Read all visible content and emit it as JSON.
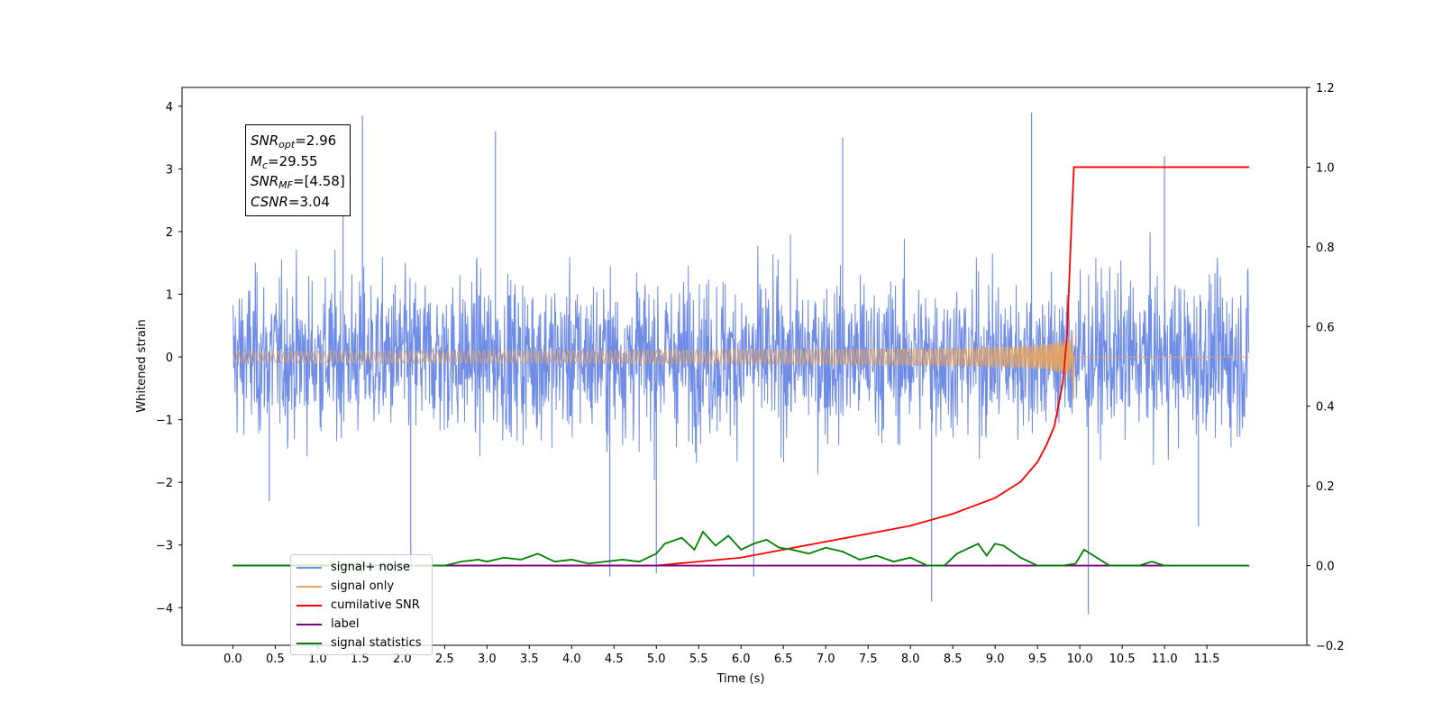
{
  "chart_data": {
    "type": "line",
    "xlabel": "Time (s)",
    "ylabel": "Whitened strain",
    "xlim": [
      -0.6,
      12.68
    ],
    "ylim": [
      -4.6,
      4.3
    ],
    "y2lim": [
      -0.2,
      1.2
    ],
    "x_ticks": [
      0.0,
      0.5,
      1.0,
      1.5,
      2.0,
      2.5,
      3.0,
      3.5,
      4.0,
      4.5,
      5.0,
      5.5,
      6.0,
      6.5,
      7.0,
      7.5,
      8.0,
      8.5,
      9.0,
      9.5,
      10.0,
      10.5,
      11.0,
      11.5
    ],
    "x_tick_labels": [
      "0.0",
      "0.5",
      "1.0",
      "1.5",
      "2.0",
      "2.5",
      "3.0",
      "3.5",
      "4.0",
      "4.5",
      "5.0",
      "5.5",
      "6.0",
      "6.5",
      "7.0",
      "7.5",
      "8.0",
      "8.5",
      "9.0",
      "9.5",
      "10.0",
      "10.5",
      "11.0",
      "11.5"
    ],
    "y_ticks": [
      -4,
      -3,
      -2,
      -1,
      0,
      1,
      2,
      3,
      4
    ],
    "y_tick_labels": [
      "−4",
      "−3",
      "−2",
      "−1",
      "0",
      "1",
      "2",
      "3",
      "4"
    ],
    "y2_ticks": [
      -0.2,
      0.0,
      0.2,
      0.4,
      0.6,
      0.8,
      1.0,
      1.2
    ],
    "y2_tick_labels": [
      "−0.2",
      "0.0",
      "0.2",
      "0.4",
      "0.6",
      "0.8",
      "1.0",
      "1.2"
    ],
    "grid": false,
    "legend_position": "lower-left",
    "series": [
      {
        "name": "signal+ noise",
        "axis": "left",
        "color": "#6f8ce6",
        "t_range": [
          0.0,
          12.0
        ],
        "envelope": 1.5,
        "peaks": [
          [
            1.53,
            3.85
          ],
          [
            9.43,
            3.9
          ],
          [
            1.3,
            3.2
          ],
          [
            3.1,
            3.6
          ],
          [
            7.2,
            3.5
          ],
          [
            2.1,
            -3.4
          ],
          [
            4.45,
            -3.5
          ],
          [
            5.0,
            -3.45
          ],
          [
            6.15,
            -3.5
          ],
          [
            8.25,
            -3.9
          ],
          [
            10.1,
            -4.1
          ],
          [
            0.43,
            -2.3
          ],
          [
            11.0,
            3.2
          ],
          [
            11.4,
            -2.7
          ]
        ]
      },
      {
        "name": "signal only",
        "axis": "left",
        "color": "#e8a45c",
        "t_range": [
          0.0,
          12.0
        ],
        "merger_time": 9.93,
        "peak_amplitude": 0.7
      },
      {
        "name": "cumilative SNR",
        "axis": "right",
        "color": "#ff0000",
        "x": [
          0.0,
          5.0,
          5.5,
          6.0,
          6.5,
          7.0,
          7.5,
          8.0,
          8.5,
          9.0,
          9.3,
          9.5,
          9.6,
          9.7,
          9.8,
          9.85,
          9.9,
          9.93,
          12.0
        ],
        "y": [
          0.0,
          0.0,
          0.01,
          0.02,
          0.04,
          0.06,
          0.08,
          0.1,
          0.13,
          0.17,
          0.21,
          0.26,
          0.3,
          0.35,
          0.46,
          0.58,
          0.85,
          1.0,
          1.0
        ]
      },
      {
        "name": "label",
        "axis": "right",
        "color": "#800080",
        "x": [
          0.0,
          5.0,
          11.0
        ],
        "y": [
          0.0,
          0.0,
          0.0
        ]
      },
      {
        "name": "signal statistics",
        "axis": "right",
        "color": "#008000",
        "x": [
          0.0,
          2.5,
          2.7,
          2.9,
          3.0,
          3.2,
          3.4,
          3.6,
          3.8,
          4.0,
          4.2,
          4.4,
          4.6,
          4.8,
          5.0,
          5.1,
          5.3,
          5.45,
          5.55,
          5.7,
          5.85,
          6.0,
          6.15,
          6.3,
          6.45,
          6.6,
          6.8,
          7.0,
          7.2,
          7.4,
          7.6,
          7.8,
          8.0,
          8.2,
          8.4,
          8.55,
          8.7,
          8.8,
          8.9,
          9.0,
          9.1,
          9.3,
          9.5,
          9.8,
          9.95,
          10.05,
          10.2,
          10.35,
          10.5,
          10.7,
          10.85,
          11.0,
          12.0
        ],
        "y": [
          0.0,
          0.0,
          0.01,
          0.015,
          0.01,
          0.02,
          0.015,
          0.03,
          0.01,
          0.015,
          0.005,
          0.01,
          0.015,
          0.01,
          0.03,
          0.055,
          0.07,
          0.04,
          0.085,
          0.05,
          0.075,
          0.04,
          0.055,
          0.065,
          0.045,
          0.04,
          0.03,
          0.045,
          0.035,
          0.015,
          0.025,
          0.01,
          0.02,
          0.0,
          0.0,
          0.03,
          0.045,
          0.055,
          0.025,
          0.055,
          0.05,
          0.02,
          0.0,
          0.0,
          0.005,
          0.04,
          0.02,
          0.0,
          0.0,
          0.0,
          0.01,
          0.0,
          0.0
        ]
      }
    ],
    "annotation_lines": [
      {
        "var": "SNR",
        "sub": "opt",
        "text": "=2.96"
      },
      {
        "var": "M",
        "sub": "c",
        "text": "=29.55"
      },
      {
        "var": "SNR",
        "sub": "MF",
        "text": "=[4.58]"
      },
      {
        "var": "CSNR",
        "sub": "",
        "text": "=3.04"
      }
    ]
  }
}
